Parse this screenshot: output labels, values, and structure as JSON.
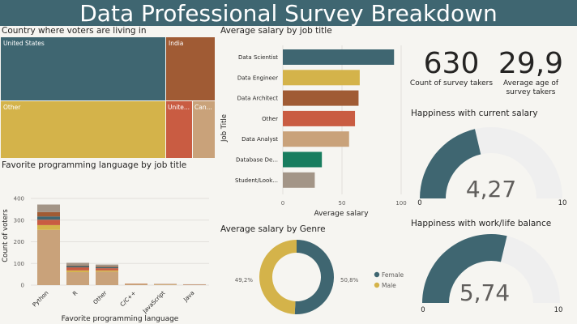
{
  "page_title": "Data Professional Survey Breakdown",
  "treemap": {
    "title": "Country where voters are living in",
    "cells": [
      {
        "label": "United States",
        "color": "#3f6671"
      },
      {
        "label": "India",
        "color": "#a05b34"
      },
      {
        "label": "Other",
        "color": "#d4b34a"
      },
      {
        "label": "Unite...",
        "color": "#c95c42"
      },
      {
        "label": "Can...",
        "color": "#c9a27a"
      }
    ]
  },
  "salary_by_job": {
    "title": "Average salary by job title",
    "xlabel": "Average salary",
    "ylabel": "Job Title"
  },
  "prog_lang": {
    "title": "Favorite programming language by job title",
    "xlabel": "Favorite programming language",
    "ylabel": "Count of voters"
  },
  "kpi": {
    "count_value": "630",
    "count_label": "Count of survey takers",
    "age_value": "29,9",
    "age_label_1": "Average age of",
    "age_label_2": "survey takers"
  },
  "gauge_salary": {
    "title": "Happiness with current salary",
    "value_text": "4,27",
    "min_label": "0",
    "max_label": "10"
  },
  "gauge_balance": {
    "title": "Happiness with work/life balance",
    "value_text": "5,74",
    "min_label": "0",
    "max_label": "10"
  },
  "salary_by_genre": {
    "title": "Average salary by Genre"
  },
  "chart_data": [
    {
      "type": "treemap",
      "title": "Country where voters are living in",
      "categories": [
        "United States",
        "India",
        "Other",
        "United Kingdom",
        "Canada"
      ]
    },
    {
      "type": "bar",
      "orientation": "horizontal",
      "title": "Average salary by job title",
      "xlabel": "Average salary",
      "ylabel": "Job Title",
      "categories": [
        "Data Scientist",
        "Data Engineer",
        "Data Architect",
        "Other",
        "Data Analyst",
        "Database De...",
        "Student/Look..."
      ],
      "values": [
        94,
        65,
        64,
        61,
        56,
        33,
        27
      ],
      "colors": [
        "#3f6671",
        "#d4b34a",
        "#a05b34",
        "#c95c42",
        "#c9a27a",
        "#187d5f",
        "#a39587"
      ],
      "xlim": [
        0,
        100
      ],
      "xticks": [
        0,
        50,
        100
      ],
      "grid": true
    },
    {
      "type": "bar",
      "stacked": true,
      "title": "Favorite programming language by job title",
      "xlabel": "Favorite programming language",
      "ylabel": "Count of voters",
      "categories": [
        "Python",
        "R",
        "Other",
        "C/C++",
        "JavaScript",
        "Java"
      ],
      "series": [
        {
          "color": "#c9a27a",
          "values": [
            255,
            60,
            62,
            4,
            3,
            2
          ]
        },
        {
          "color": "#d4b34a",
          "values": [
            22,
            8,
            6,
            1,
            1,
            0
          ]
        },
        {
          "color": "#c95c42",
          "values": [
            25,
            14,
            10,
            1,
            1,
            1
          ]
        },
        {
          "color": "#3f6671",
          "values": [
            15,
            6,
            5,
            0,
            0,
            0
          ]
        },
        {
          "color": "#a05b34",
          "values": [
            20,
            3,
            3,
            1,
            0,
            0
          ]
        },
        {
          "color": "#a39587",
          "values": [
            35,
            12,
            9,
            0,
            1,
            1
          ]
        }
      ],
      "ylim": [
        0,
        430
      ],
      "yticks": [
        0,
        100,
        200,
        300,
        400
      ],
      "grid": true
    },
    {
      "type": "pie",
      "donut": true,
      "title": "Average salary by Genre",
      "categories": [
        "Female",
        "Male"
      ],
      "values": [
        50.8,
        49.2
      ],
      "value_labels": [
        "50,8%",
        "49,2%"
      ],
      "colors": [
        "#3f6671",
        "#d4b34a"
      ]
    },
    {
      "type": "gauge",
      "title": "Happiness with current salary",
      "value": 4.27,
      "min": 0,
      "max": 10,
      "color": "#3f6671"
    },
    {
      "type": "gauge",
      "title": "Happiness with work/life balance",
      "value": 5.74,
      "min": 0,
      "max": 10,
      "color": "#3f6671"
    }
  ]
}
